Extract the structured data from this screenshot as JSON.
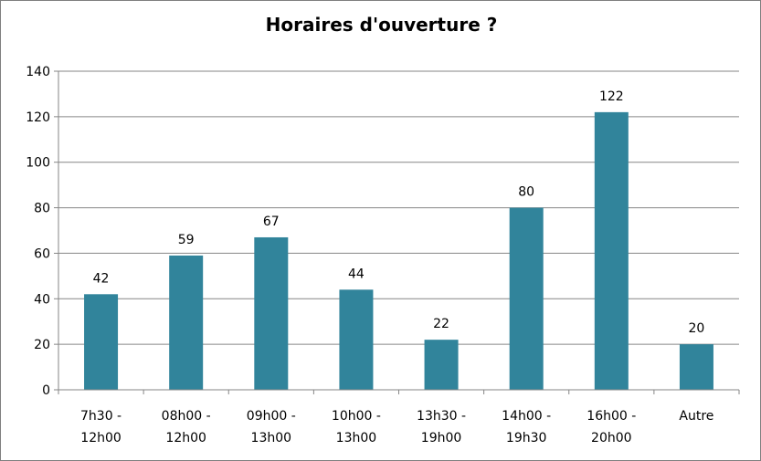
{
  "chart_data": {
    "type": "bar",
    "title": "Horaires d'ouverture ?",
    "categories": [
      [
        "7h30 -",
        "12h00"
      ],
      [
        "08h00 -",
        "12h00"
      ],
      [
        "09h00 -",
        "13h00"
      ],
      [
        "10h00 -",
        "13h00"
      ],
      [
        "13h30 -",
        "19h00"
      ],
      [
        "14h00 -",
        "19h30"
      ],
      [
        "16h00 -",
        "20h00"
      ],
      [
        "Autre"
      ]
    ],
    "values": [
      42,
      59,
      67,
      44,
      22,
      80,
      122,
      20
    ],
    "ylim": [
      0,
      140
    ],
    "yticks": [
      0,
      20,
      40,
      60,
      80,
      100,
      120,
      140
    ],
    "grid": true,
    "bar_color": "#31849b",
    "xlabel": "",
    "ylabel": ""
  }
}
